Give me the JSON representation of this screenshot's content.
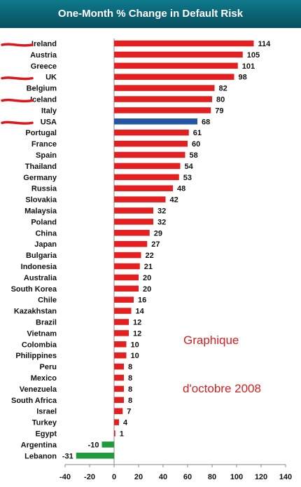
{
  "chart_data": {
    "type": "bar",
    "orientation": "horizontal",
    "title": "One-Month % Change in Default Risk",
    "categories": [
      "Ireland",
      "Austria",
      "Greece",
      "UK",
      "Belgium",
      "Iceland",
      "Italy",
      "USA",
      "Portugal",
      "France",
      "Spain",
      "Thailand",
      "Germany",
      "Russia",
      "Slovakia",
      "Malaysia",
      "Poland",
      "China",
      "Japan",
      "Bulgaria",
      "Indonesia",
      "Australia",
      "South Korea",
      "Chile",
      "Kazakhstan",
      "Brazil",
      "Vietnam",
      "Colombia",
      "Philippines",
      "Peru",
      "Mexico",
      "Venezuela",
      "South Africa",
      "Israel",
      "Turkey",
      "Egypt",
      "Argentina",
      "Lebanon"
    ],
    "values": [
      114,
      105,
      101,
      98,
      82,
      80,
      79,
      68,
      61,
      60,
      58,
      54,
      53,
      48,
      42,
      32,
      32,
      29,
      27,
      22,
      21,
      20,
      20,
      16,
      14,
      12,
      12,
      10,
      10,
      8,
      8,
      8,
      8,
      7,
      4,
      1,
      -10,
      -31
    ],
    "xlim": [
      -40,
      140
    ],
    "xticks": [
      -40,
      -20,
      0,
      20,
      40,
      60,
      80,
      100,
      120,
      140
    ],
    "xlabel": "",
    "ylabel": "",
    "grid": false,
    "colors": {
      "positive": "#e41f1f",
      "highlight": "#2255a4",
      "negative": "#1f9a3c"
    },
    "highlight": [
      "USA"
    ],
    "underlined": [
      "Ireland",
      "UK",
      "Iceland",
      "USA"
    ],
    "underline_color": "#e0151b"
  },
  "annotation": {
    "line1": "Graphique",
    "line2": "d'octobre 2008"
  }
}
